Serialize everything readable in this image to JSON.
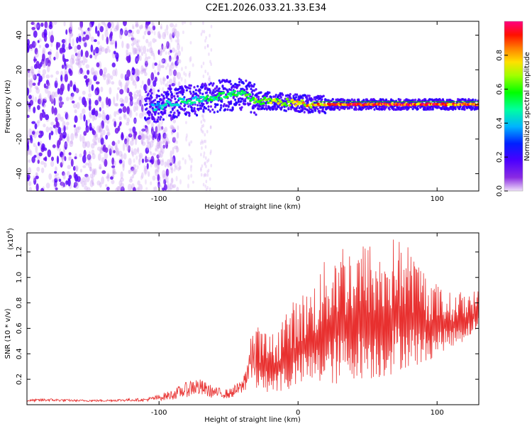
{
  "title": "C2E1.2026.033.21.33.E34",
  "chart_data": [
    {
      "type": "heatmap",
      "title": "C2E1.2026.033.21.33.E34",
      "xlabel": "Height of straight line (km)",
      "ylabel": "Frequency (Hz)",
      "xlim": [
        -195,
        130
      ],
      "ylim": [
        -50,
        48
      ],
      "xticks": [
        -100,
        0,
        100
      ],
      "yticks": [
        -40,
        -20,
        0,
        20,
        40
      ],
      "xtick_labels": [
        "-100",
        "0",
        "100"
      ],
      "ytick_labels": [
        "-40",
        "-20",
        "0",
        "20",
        "40"
      ],
      "colorbar": {
        "label": "Normalized spectral amplitude",
        "range": [
          0,
          1
        ],
        "ticks": [
          0.0,
          0.2,
          0.4,
          0.6,
          0.8
        ],
        "tick_labels": [
          "0.0",
          "0.2",
          "0.4",
          "0.6",
          "0.8"
        ],
        "colors": [
          "#e8d4f8",
          "#8a2be2",
          "#5000ff",
          "#0000ff",
          "#00c8ff",
          "#00ff80",
          "#00ff00",
          "#80ff00",
          "#ffff00",
          "#ff8000",
          "#ff0000",
          "#ff0080"
        ]
      },
      "features": [
        {
          "name": "broadband noise",
          "x_range": [
            -195,
            -105
          ],
          "freq_range": [
            -50,
            48
          ],
          "amplitude": 0.1
        },
        {
          "name": "vertical noise streak",
          "x_range": [
            -70,
            -62
          ],
          "freq_range": [
            -50,
            48
          ],
          "amplitude": 0.05
        },
        {
          "name": "Doppler trace",
          "x": [
            -105,
            -90,
            -70,
            -55,
            -40,
            -30,
            -20,
            -5,
            10,
            30,
            60,
            90,
            130
          ],
          "freq": [
            -2,
            1,
            3,
            5,
            6,
            2,
            2,
            1,
            0,
            0,
            0,
            0,
            0
          ],
          "amplitude": [
            0.4,
            0.45,
            0.5,
            0.55,
            0.6,
            0.65,
            0.7,
            0.75,
            0.85,
            0.95,
            0.95,
            0.95,
            0.95
          ]
        }
      ]
    },
    {
      "type": "line",
      "xlabel": "Height of straight line (km)",
      "ylabel": "SNR (10 * v/v)",
      "y_scale_label": "(x10",
      "y_scale_exponent": "4",
      "xlim": [
        -195,
        130
      ],
      "ylim": [
        0,
        1.35
      ],
      "xticks": [
        -100,
        0,
        100
      ],
      "yticks": [
        0.2,
        0.4,
        0.6,
        0.8,
        1.0,
        1.2
      ],
      "xtick_labels": [
        "-100",
        "0",
        "100"
      ],
      "ytick_labels": [
        "0.2",
        "0.4",
        "0.6",
        "0.8",
        "1.0",
        "1.2"
      ],
      "series": [
        {
          "name": "SNR",
          "color": "#e8302f",
          "x": [
            -195,
            -180,
            -160,
            -140,
            -120,
            -110,
            -100,
            -90,
            -80,
            -75,
            -70,
            -60,
            -50,
            -40,
            -35,
            -30,
            -25,
            -20,
            -15,
            -10,
            -5,
            0,
            10,
            20,
            30,
            40,
            50,
            60,
            70,
            80,
            90,
            100,
            110,
            120,
            130
          ],
          "envelope_low": [
            0.02,
            0.02,
            0.02,
            0.02,
            0.02,
            0.02,
            0.02,
            0.02,
            0.03,
            0.03,
            0.03,
            0.03,
            0.03,
            0.05,
            0.05,
            0.1,
            0.1,
            0.1,
            0.1,
            0.1,
            0.1,
            0.15,
            0.15,
            0.15,
            0.15,
            0.2,
            0.2,
            0.2,
            0.25,
            0.3,
            0.3,
            0.4,
            0.45,
            0.5,
            0.6
          ],
          "envelope_high": [
            0.04,
            0.05,
            0.04,
            0.04,
            0.05,
            0.05,
            0.08,
            0.12,
            0.18,
            0.22,
            0.2,
            0.14,
            0.12,
            0.2,
            0.5,
            0.62,
            0.6,
            0.55,
            0.6,
            0.75,
            0.8,
            0.85,
            0.95,
            1.15,
            1.32,
            1.25,
            1.3,
            1.2,
            1.34,
            1.25,
            1.1,
            0.95,
            0.88,
            0.9,
            0.9
          ]
        }
      ]
    }
  ]
}
